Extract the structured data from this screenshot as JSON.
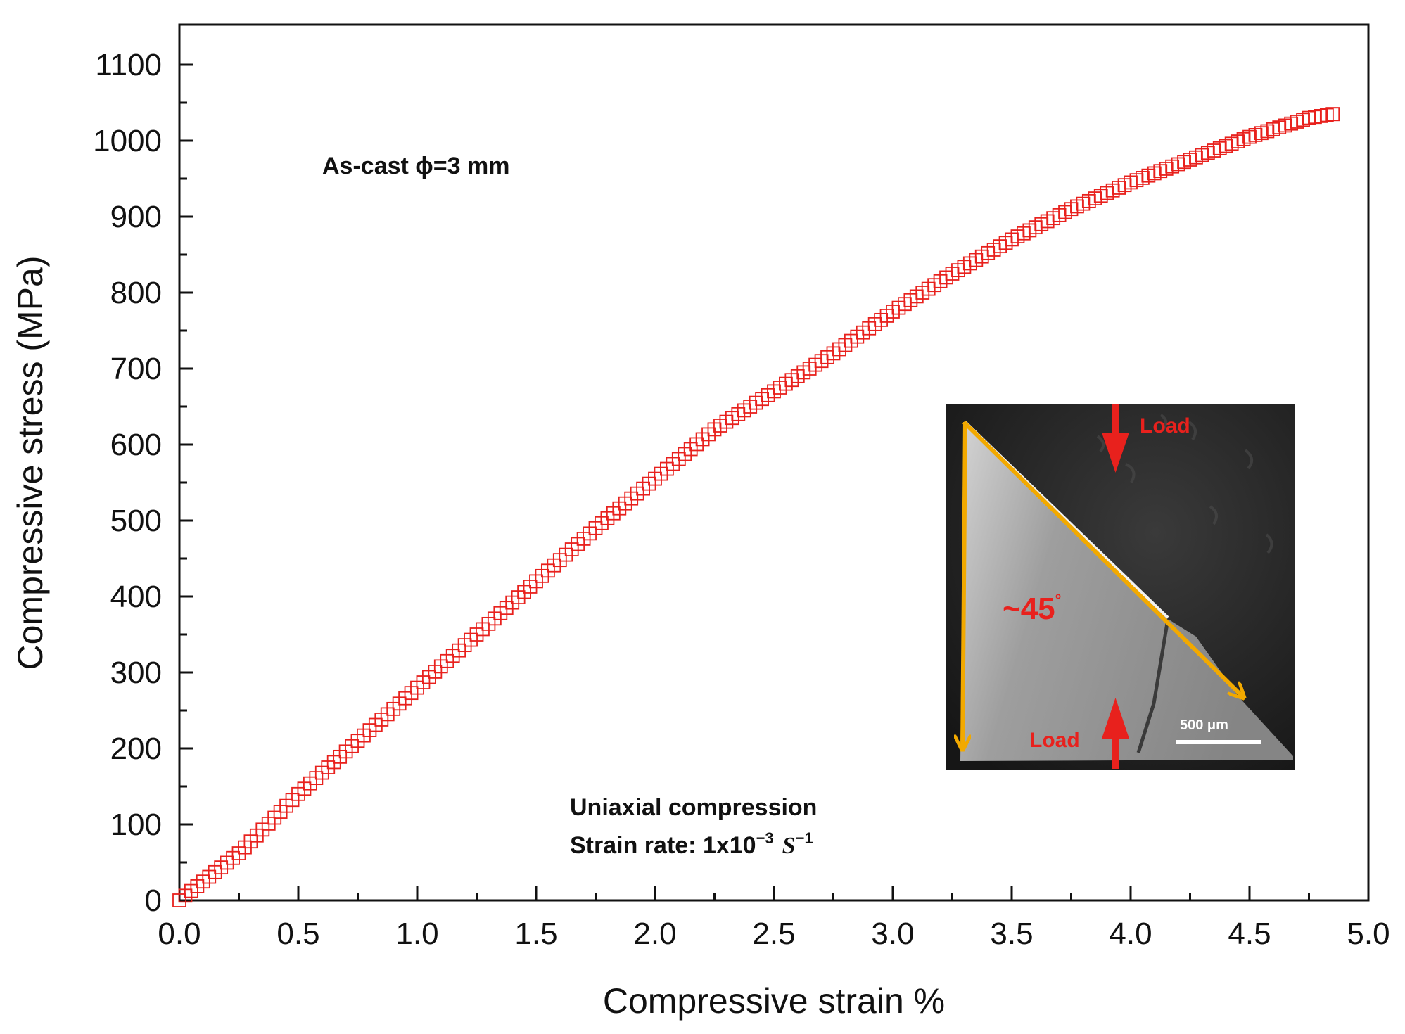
{
  "chart_data": {
    "type": "scatter",
    "xlabel": "Compressive strain %",
    "ylabel": "Compressive stress (MPa)",
    "xlim": [
      0.0,
      5.0
    ],
    "ylim": [
      0,
      1150
    ],
    "xticks": [
      "0.0",
      "0.5",
      "1.0",
      "1.5",
      "2.0",
      "2.5",
      "3.0",
      "3.5",
      "4.0",
      "4.5",
      "5.0"
    ],
    "yticks": [
      "0",
      "100",
      "200",
      "300",
      "400",
      "500",
      "600",
      "700",
      "800",
      "900",
      "1000",
      "1100"
    ],
    "series": [
      {
        "name": "As-cast φ=3 mm",
        "marker": "open-square",
        "color": "#e8211d",
        "x": [
          0.0,
          0.25,
          0.5,
          0.75,
          1.0,
          1.25,
          1.5,
          1.75,
          2.0,
          2.25,
          2.5,
          2.75,
          3.0,
          3.25,
          3.5,
          3.75,
          4.0,
          4.25,
          4.5,
          4.75,
          4.85
        ],
        "y": [
          0,
          62,
          140,
          210,
          280,
          350,
          420,
          490,
          555,
          620,
          670,
          720,
          775,
          825,
          870,
          910,
          945,
          975,
          1005,
          1030,
          1035
        ]
      }
    ],
    "annotations": {
      "sample": "As-cast  ϕ=3 mm",
      "test_line1": "Uniaxial compression",
      "test_line2_prefix": "Strain rate: 1x10",
      "test_line2_exp1": "−3",
      "test_line2_unit": "S",
      "test_line2_exp2": "−1"
    }
  },
  "inset": {
    "load_top": "Load",
    "load_bottom": "Load",
    "angle": "~45",
    "angle_mark": "°",
    "scale_bar": "500 μm",
    "arrow_color": "#f2a900",
    "load_color": "#e8211d"
  }
}
